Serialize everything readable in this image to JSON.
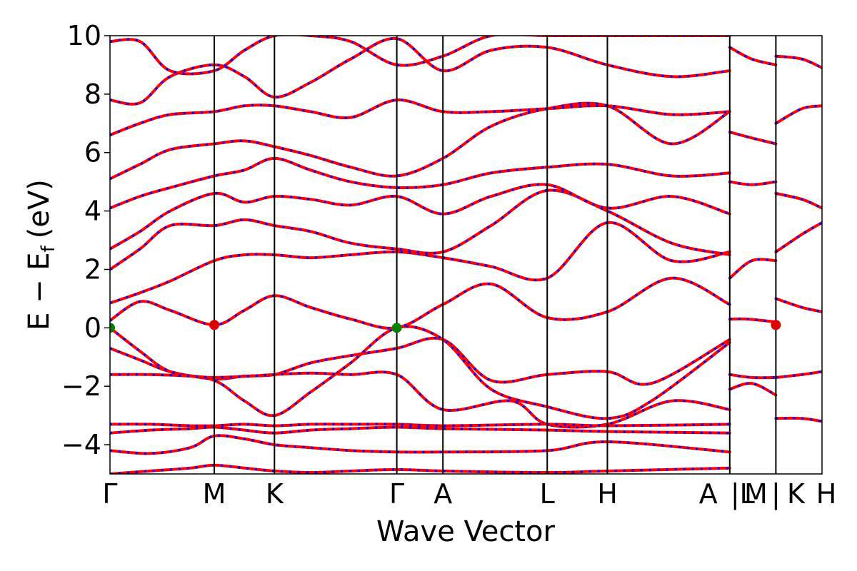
{
  "chart_data": {
    "type": "line",
    "xlabel": "Wave Vector",
    "ylabel": "E − E",
    "ylabel_subscript": "f",
    "ylabel_unit": "(eV)",
    "ylim": [
      -5,
      10
    ],
    "yticks": [
      10,
      8,
      6,
      4,
      2,
      0,
      -2,
      -4
    ],
    "ytick_labels": [
      "10",
      "8",
      "6",
      "4",
      "2",
      "0",
      "−2",
      "−4"
    ],
    "xlim": [
      0,
      3.55
    ],
    "high_symmetry_points": [
      {
        "label": "Γ",
        "x": 0.0
      },
      {
        "label": "M",
        "x": 0.52
      },
      {
        "label": "K",
        "x": 0.82
      },
      {
        "label": "Γ",
        "x": 1.43
      },
      {
        "label": "A",
        "x": 1.66
      },
      {
        "label": "L",
        "x": 2.18
      },
      {
        "label": "H",
        "x": 2.48
      },
      {
        "label": "A",
        "x": 3.09
      },
      {
        "label": "|L",
        "x": 3.09
      },
      {
        "label": "M",
        "x": 3.32
      },
      {
        "label": "|",
        "x": 3.32
      },
      {
        "label": "K",
        "x": 3.32
      },
      {
        "label": "H",
        "x": 3.55
      }
    ],
    "series_colors": {
      "primary": "#ff0000",
      "overlay": "#0000ff"
    },
    "bands": [
      {
        "x": [
          0,
          0.15,
          0.3,
          0.52,
          0.67,
          0.82,
          1.0,
          1.2,
          1.43,
          1.66,
          1.9,
          2.18,
          2.48,
          2.7,
          3.09
        ],
        "y": [
          -0.7,
          -1.1,
          -1.5,
          -1.75,
          -1.65,
          -1.6,
          -1.2,
          -0.95,
          -0.7,
          -0.4,
          -1.8,
          -1.6,
          -1.5,
          -1.9,
          -0.4
        ]
      },
      {
        "x": [
          0,
          0.15,
          0.3,
          0.52,
          0.67,
          0.82,
          1.0,
          1.2,
          1.43,
          1.66,
          1.9,
          2.18,
          2.48,
          2.7,
          3.09
        ],
        "y": [
          0,
          -0.8,
          -1.5,
          -1.8,
          -2.5,
          -3.0,
          -2.2,
          -1.2,
          0,
          -0.4,
          -2.1,
          -2.7,
          -3.1,
          -2.5,
          -0.5
        ]
      },
      {
        "x": [
          0,
          0.2,
          0.4,
          0.52,
          0.7,
          0.82,
          1.0,
          1.2,
          1.43,
          1.66,
          2.0,
          2.18,
          2.48,
          2.8,
          3.09
        ],
        "y": [
          -1.6,
          -1.6,
          -1.65,
          -1.7,
          -1.65,
          -1.6,
          -1.55,
          -1.6,
          -1.6,
          -2.8,
          -2.5,
          -3.3,
          -3.3,
          -2.5,
          -2.8
        ]
      },
      {
        "x": [
          0,
          0.2,
          0.4,
          0.52,
          0.67,
          0.82,
          1.0,
          1.2,
          1.43,
          1.66,
          2.18,
          2.48,
          3.09
        ],
        "y": [
          -3.3,
          -3.3,
          -3.35,
          -3.35,
          -3.3,
          -3.35,
          -3.3,
          -3.3,
          -3.3,
          -3.35,
          -3.3,
          -3.35,
          -3.3
        ]
      },
      {
        "x": [
          0,
          0.2,
          0.4,
          0.52,
          0.67,
          0.82,
          1.0,
          1.2,
          1.43,
          1.66,
          2.18,
          2.48,
          3.09
        ],
        "y": [
          -3.6,
          -3.5,
          -3.45,
          -3.4,
          -3.5,
          -3.6,
          -3.5,
          -3.45,
          -3.4,
          -3.45,
          -3.5,
          -3.55,
          -3.6
        ]
      },
      {
        "x": [
          0,
          0.2,
          0.4,
          0.52,
          0.67,
          0.82,
          1.0,
          1.2,
          1.43,
          1.66,
          2.18,
          2.48,
          3.09
        ],
        "y": [
          -4.2,
          -4.3,
          -4.1,
          -3.7,
          -3.8,
          -4.0,
          -4.1,
          -4.2,
          -4.25,
          -4.25,
          -4.2,
          -3.9,
          -4.25
        ]
      },
      {
        "x": [
          0,
          0.15,
          0.3,
          0.52,
          0.67,
          0.82,
          1.0,
          1.2,
          1.43,
          1.66,
          1.9,
          2.18,
          2.48,
          2.8,
          3.09
        ],
        "y": [
          0.25,
          0.9,
          0.6,
          0.1,
          0.6,
          1.1,
          0.7,
          0.3,
          0.0,
          0.8,
          1.5,
          0.35,
          0.55,
          1.7,
          0.8
        ]
      },
      {
        "x": [
          0,
          0.15,
          0.3,
          0.52,
          0.67,
          0.82,
          1.0,
          1.2,
          1.43,
          1.66,
          1.9,
          2.18,
          2.48,
          2.8,
          3.09
        ],
        "y": [
          0.85,
          1.2,
          1.6,
          2.3,
          2.5,
          2.5,
          2.4,
          2.5,
          2.6,
          2.4,
          2.1,
          1.7,
          3.6,
          2.3,
          2.6
        ]
      },
      {
        "x": [
          0,
          0.15,
          0.3,
          0.52,
          0.67,
          0.82,
          1.0,
          1.2,
          1.43,
          1.66,
          1.9,
          2.18,
          2.48,
          2.8,
          3.09
        ],
        "y": [
          2.0,
          2.7,
          3.5,
          3.5,
          3.7,
          3.5,
          3.3,
          2.9,
          2.7,
          2.6,
          3.5,
          4.7,
          4.0,
          2.9,
          2.5
        ]
      },
      {
        "x": [
          0,
          0.15,
          0.3,
          0.52,
          0.67,
          0.82,
          1.0,
          1.2,
          1.43,
          1.66,
          1.9,
          2.18,
          2.48,
          2.8,
          3.09
        ],
        "y": [
          2.7,
          3.3,
          4.0,
          4.6,
          4.3,
          4.5,
          4.4,
          4.2,
          4.5,
          3.9,
          4.5,
          4.9,
          4.1,
          4.5,
          3.9
        ]
      },
      {
        "x": [
          0,
          0.15,
          0.3,
          0.52,
          0.67,
          0.82,
          1.0,
          1.2,
          1.43,
          1.66,
          1.9,
          2.18,
          2.48,
          2.8,
          3.09
        ],
        "y": [
          4.1,
          4.5,
          4.8,
          5.2,
          5.4,
          5.8,
          5.4,
          5.0,
          4.8,
          4.9,
          5.3,
          5.5,
          5.6,
          5.2,
          5.3
        ]
      },
      {
        "x": [
          0,
          0.15,
          0.3,
          0.52,
          0.67,
          0.82,
          1.0,
          1.2,
          1.43,
          1.66,
          1.9,
          2.18,
          2.48,
          2.8,
          3.09
        ],
        "y": [
          5.1,
          5.6,
          6.1,
          6.3,
          6.4,
          6.2,
          5.9,
          5.5,
          5.2,
          5.8,
          6.9,
          7.5,
          7.6,
          6.3,
          7.4
        ]
      },
      {
        "x": [
          0,
          0.15,
          0.3,
          0.52,
          0.67,
          0.82,
          1.0,
          1.2,
          1.43,
          1.66,
          1.9,
          2.18,
          2.48,
          2.8,
          3.09
        ],
        "y": [
          6.6,
          7.0,
          7.3,
          7.4,
          7.6,
          7.6,
          7.4,
          7.2,
          7.8,
          7.4,
          7.4,
          7.5,
          7.6,
          7.3,
          7.4
        ]
      },
      {
        "x": [
          0,
          0.15,
          0.3,
          0.52,
          0.67,
          0.82,
          1.0,
          1.2,
          1.43,
          1.66,
          1.9,
          2.18,
          2.48,
          2.8,
          3.09
        ],
        "y": [
          7.8,
          7.7,
          8.6,
          9.0,
          8.6,
          7.9,
          8.4,
          9.2,
          9.9,
          8.8,
          9.5,
          9.6,
          9.0,
          8.6,
          8.8
        ]
      },
      {
        "x": [
          0,
          0.15,
          0.3,
          0.52,
          0.67,
          0.82,
          1.0,
          1.2,
          1.43,
          1.66,
          1.9,
          2.18,
          2.48,
          2.8,
          3.09
        ],
        "y": [
          9.8,
          9.8,
          8.8,
          8.8,
          9.5,
          10.0,
          10.0,
          9.8,
          9.0,
          9.3,
          10.0,
          10.0,
          10.0,
          10.0,
          10.0
        ]
      },
      {
        "x": [
          0,
          0.2,
          0.4,
          0.52,
          0.67,
          0.82,
          1.0,
          1.2,
          1.43,
          1.66,
          2.18,
          2.48,
          3.09
        ],
        "y": [
          -5.0,
          -4.9,
          -4.8,
          -4.7,
          -4.8,
          -4.9,
          -4.95,
          -4.9,
          -4.85,
          -4.9,
          -4.95,
          -4.9,
          -4.8
        ]
      },
      {
        "x": [
          3.09,
          3.18,
          3.32
        ],
        "y": [
          0.3,
          0.3,
          0.2
        ]
      },
      {
        "x": [
          3.09,
          3.2,
          3.32
        ],
        "y": [
          -1.6,
          -1.7,
          -1.7
        ]
      },
      {
        "x": [
          3.09,
          3.2,
          3.32
        ],
        "y": [
          -2.1,
          -1.9,
          -2.3
        ]
      },
      {
        "x": [
          3.09,
          3.2,
          3.32
        ],
        "y": [
          1.7,
          2.3,
          2.3
        ]
      },
      {
        "x": [
          3.09,
          3.2,
          3.32
        ],
        "y": [
          5.0,
          4.9,
          5.0
        ]
      },
      {
        "x": [
          3.09,
          3.2,
          3.32
        ],
        "y": [
          6.7,
          6.5,
          6.3
        ]
      },
      {
        "x": [
          3.09,
          3.2,
          3.32
        ],
        "y": [
          9.6,
          9.2,
          9.0
        ]
      },
      {
        "x": [
          3.32,
          3.45,
          3.55
        ],
        "y": [
          1.0,
          0.7,
          0.55
        ]
      },
      {
        "x": [
          3.32,
          3.45,
          3.55
        ],
        "y": [
          -1.7,
          -1.6,
          -1.5
        ]
      },
      {
        "x": [
          3.32,
          3.45,
          3.55
        ],
        "y": [
          2.6,
          3.2,
          3.6
        ]
      },
      {
        "x": [
          3.32,
          3.45,
          3.55
        ],
        "y": [
          4.6,
          4.4,
          4.1
        ]
      },
      {
        "x": [
          3.32,
          3.45,
          3.55
        ],
        "y": [
          7.0,
          7.5,
          7.6
        ]
      },
      {
        "x": [
          3.32,
          3.45,
          3.55
        ],
        "y": [
          9.3,
          9.2,
          8.9
        ]
      },
      {
        "x": [
          3.32,
          3.45,
          3.55
        ],
        "y": [
          -3.1,
          -3.1,
          -3.2
        ]
      }
    ],
    "markers": [
      {
        "x": 0.0,
        "y": 0.0,
        "color": "#008000"
      },
      {
        "x": 1.43,
        "y": 0.0,
        "color": "#008000"
      },
      {
        "x": 0.52,
        "y": 0.1,
        "color": "#dd0000"
      },
      {
        "x": 3.32,
        "y": 0.1,
        "color": "#dd0000"
      }
    ]
  }
}
